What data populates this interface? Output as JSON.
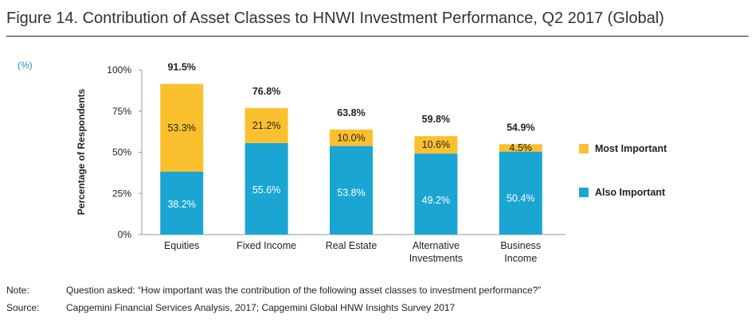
{
  "figure_title": "Figure 14. Contribution of Asset Classes to HNWI Investment Performance, Q2 2017 (Global)",
  "unit_label": "(%)",
  "note_label": "Note:",
  "note_text": "Question asked: “How important was the contribution of the following asset classes to investment performance?”",
  "source_label": "Source:",
  "source_text": "Capgemini Financial Services Analysis, 2017; Capgemini Global HNW Insights Survey 2017",
  "colors": {
    "most_important": "#fbc02d",
    "also_important": "#1ba5d3"
  },
  "chart_data": {
    "type": "bar",
    "stacked": true,
    "ylabel": "Percentage of Respondents",
    "xlabel": "",
    "ylim": [
      0,
      100
    ],
    "yticks": [
      "0%",
      "25%",
      "50%",
      "75%",
      "100%"
    ],
    "ytick_values": [
      0,
      25,
      50,
      75,
      100
    ],
    "categories": [
      [
        "Equities"
      ],
      [
        "Fixed Income"
      ],
      [
        "Real Estate"
      ],
      [
        "Alternative",
        "Investments"
      ],
      [
        "Business",
        "Income"
      ]
    ],
    "series": [
      {
        "name": "Also Important",
        "values": [
          38.2,
          55.6,
          53.8,
          49.2,
          50.4
        ],
        "labels": [
          "38.2%",
          "55.6%",
          "53.8%",
          "49.2%",
          "50.4%"
        ]
      },
      {
        "name": "Most Important",
        "values": [
          53.3,
          21.2,
          10.0,
          10.6,
          4.5
        ],
        "labels": [
          "53.3%",
          "21.2%",
          "10.0%",
          "10.6%",
          "4.5%"
        ]
      }
    ],
    "totals": [
      91.5,
      76.8,
      63.8,
      59.8,
      54.9
    ],
    "total_labels": [
      "91.5%",
      "76.8%",
      "63.8%",
      "59.8%",
      "54.9%"
    ],
    "legend": [
      {
        "name": "Most Important"
      },
      {
        "name": "Also Important"
      }
    ],
    "legend_position": "right",
    "grid": false
  }
}
